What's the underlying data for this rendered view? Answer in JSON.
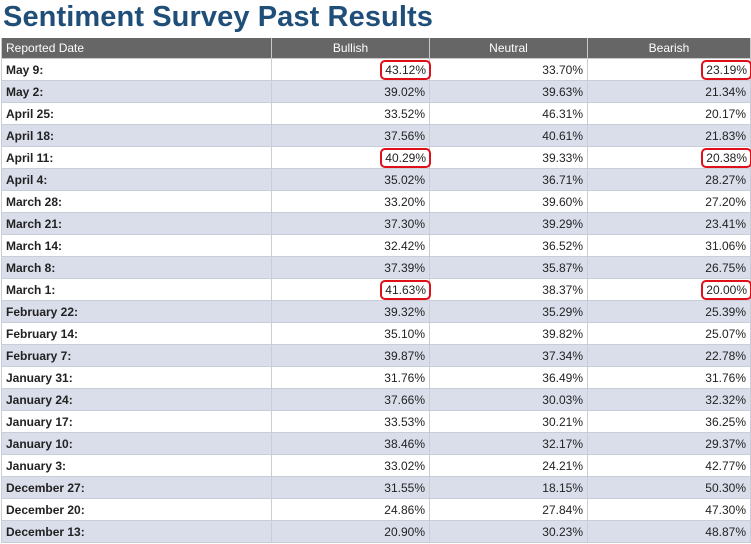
{
  "title": "Sentiment Survey Past Results",
  "highlight_color": "#e0101a",
  "columns": [
    "Reported Date",
    "Bullish",
    "Neutral",
    "Bearish"
  ],
  "rows": [
    {
      "date": "May 9:",
      "bullish": "43.12%",
      "neutral": "33.70%",
      "bearish": "23.19%",
      "highlight_bullish": true,
      "highlight_bearish": true
    },
    {
      "date": "May 2:",
      "bullish": "39.02%",
      "neutral": "39.63%",
      "bearish": "21.34%",
      "highlight_bullish": false,
      "highlight_bearish": false
    },
    {
      "date": "April 25:",
      "bullish": "33.52%",
      "neutral": "46.31%",
      "bearish": "20.17%",
      "highlight_bullish": false,
      "highlight_bearish": false
    },
    {
      "date": "April 18:",
      "bullish": "37.56%",
      "neutral": "40.61%",
      "bearish": "21.83%",
      "highlight_bullish": false,
      "highlight_bearish": false
    },
    {
      "date": "April 11:",
      "bullish": "40.29%",
      "neutral": "39.33%",
      "bearish": "20.38%",
      "highlight_bullish": true,
      "highlight_bearish": true
    },
    {
      "date": "April 4:",
      "bullish": "35.02%",
      "neutral": "36.71%",
      "bearish": "28.27%",
      "highlight_bullish": false,
      "highlight_bearish": false
    },
    {
      "date": "March 28:",
      "bullish": "33.20%",
      "neutral": "39.60%",
      "bearish": "27.20%",
      "highlight_bullish": false,
      "highlight_bearish": false
    },
    {
      "date": "March 21:",
      "bullish": "37.30%",
      "neutral": "39.29%",
      "bearish": "23.41%",
      "highlight_bullish": false,
      "highlight_bearish": false
    },
    {
      "date": "March 14:",
      "bullish": "32.42%",
      "neutral": "36.52%",
      "bearish": "31.06%",
      "highlight_bullish": false,
      "highlight_bearish": false
    },
    {
      "date": "March 8:",
      "bullish": "37.39%",
      "neutral": "35.87%",
      "bearish": "26.75%",
      "highlight_bullish": false,
      "highlight_bearish": false
    },
    {
      "date": "March 1:",
      "bullish": "41.63%",
      "neutral": "38.37%",
      "bearish": "20.00%",
      "highlight_bullish": true,
      "highlight_bearish": true
    },
    {
      "date": "February 22:",
      "bullish": "39.32%",
      "neutral": "35.29%",
      "bearish": "25.39%",
      "highlight_bullish": false,
      "highlight_bearish": false
    },
    {
      "date": "February 14:",
      "bullish": "35.10%",
      "neutral": "39.82%",
      "bearish": "25.07%",
      "highlight_bullish": false,
      "highlight_bearish": false
    },
    {
      "date": "February 7:",
      "bullish": "39.87%",
      "neutral": "37.34%",
      "bearish": "22.78%",
      "highlight_bullish": false,
      "highlight_bearish": false
    },
    {
      "date": "January 31:",
      "bullish": "31.76%",
      "neutral": "36.49%",
      "bearish": "31.76%",
      "highlight_bullish": false,
      "highlight_bearish": false
    },
    {
      "date": "January 24:",
      "bullish": "37.66%",
      "neutral": "30.03%",
      "bearish": "32.32%",
      "highlight_bullish": false,
      "highlight_bearish": false
    },
    {
      "date": "January 17:",
      "bullish": "33.53%",
      "neutral": "30.21%",
      "bearish": "36.25%",
      "highlight_bullish": false,
      "highlight_bearish": false
    },
    {
      "date": "January 10:",
      "bullish": "38.46%",
      "neutral": "32.17%",
      "bearish": "29.37%",
      "highlight_bullish": false,
      "highlight_bearish": false
    },
    {
      "date": "January 3:",
      "bullish": "33.02%",
      "neutral": "24.21%",
      "bearish": "42.77%",
      "highlight_bullish": false,
      "highlight_bearish": false
    },
    {
      "date": "December 27:",
      "bullish": "31.55%",
      "neutral": "18.15%",
      "bearish": "50.30%",
      "highlight_bullish": false,
      "highlight_bearish": false
    },
    {
      "date": "December 20:",
      "bullish": "24.86%",
      "neutral": "27.84%",
      "bearish": "47.30%",
      "highlight_bullish": false,
      "highlight_bearish": false
    },
    {
      "date": "December 13:",
      "bullish": "20.90%",
      "neutral": "30.23%",
      "bearish": "48.87%",
      "highlight_bullish": false,
      "highlight_bearish": false
    }
  ]
}
